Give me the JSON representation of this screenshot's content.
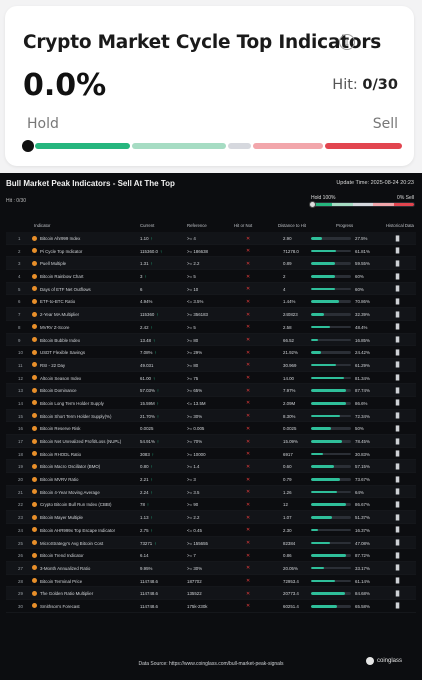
{
  "card": {
    "title": "Crypto Market Cycle Top Indicators",
    "value": "0.0%",
    "hit_prefix": "Hit: ",
    "hit_value": "0/30",
    "hold_label": "Hold",
    "sell_label": "Sell",
    "gauge_colors": [
      "#26b67e",
      "#a6dcc3",
      "#d6d8de",
      "#f2a6ab",
      "#e2454f"
    ],
    "gauge_level": 0
  },
  "panel": {
    "title": "Bull Market Peak Indicators - Sell At The Top",
    "update_time": "Update Time: 2025-08-24 20:23",
    "hit": "Hit : 0/30",
    "hold": "Hold 100%",
    "sell": "0% Sell",
    "headers": [
      "Indicator",
      "Current",
      "Reference",
      "Hit or Not",
      "Distance to Hit",
      "Progress",
      "Historical Data"
    ],
    "rows": [
      {
        "num": "1",
        "name": "Bitcoin Ahr999 Index",
        "current": "1.10",
        "up": true,
        "ref": ">= 4",
        "dist": "2.90",
        "progress": "27.5%",
        "p": 27.5
      },
      {
        "num": "2",
        "name": "Pi Cycle Top Indicator",
        "current": "115360.0",
        "up": true,
        "ref": ">= 186638",
        "dist": "71278.0",
        "progress": "61.81%",
        "p": 61.81
      },
      {
        "num": "3",
        "name": "Puell Multiple",
        "current": "1.31",
        "up": true,
        "ref": ">= 2.2",
        "dist": "0.89",
        "progress": "59.55%",
        "p": 59.55
      },
      {
        "num": "4",
        "name": "Bitcoin Rainbow Chart",
        "current": "3",
        "up": true,
        "ref": ">= 5",
        "dist": "2",
        "progress": "60%",
        "p": 60
      },
      {
        "num": "5",
        "name": "Days of ETF Net Outflows",
        "current": "6",
        "up": false,
        "ref": ">= 10",
        "dist": "4",
        "progress": "60%",
        "p": 60
      },
      {
        "num": "6",
        "name": "ETF-to-BTC Ratio",
        "current": "4.94%",
        "up": false,
        "ref": "<= 3.5%",
        "dist": "1.44%",
        "progress": "70.86%",
        "p": 70.86
      },
      {
        "num": "7",
        "name": "2-Year MA Multiplier",
        "current": "115360",
        "up": true,
        "ref": ">= 356183",
        "dist": "240823",
        "progress": "32.39%",
        "p": 32.39
      },
      {
        "num": "8",
        "name": "MVRV Z-Score",
        "current": "2.42",
        "up": true,
        "ref": ">= 5",
        "dist": "2.58",
        "progress": "48.4%",
        "p": 48.4
      },
      {
        "num": "9",
        "name": "Bitcoin Bubble Index",
        "current": "13.48",
        "up": true,
        "ref": ">= 80",
        "dist": "66.52",
        "progress": "16.85%",
        "p": 16.85
      },
      {
        "num": "10",
        "name": "USDT Flexible Savings",
        "current": "7.08%",
        "up": true,
        "ref": ">= 29%",
        "dist": "21.92%",
        "progress": "24.42%",
        "p": 24.42
      },
      {
        "num": "11",
        "name": "RSI - 22 Day",
        "current": "49.031",
        "up": false,
        "ref": ">= 80",
        "dist": "30.969",
        "progress": "61.29%",
        "p": 61.29
      },
      {
        "num": "12",
        "name": "Altcoin Season Index",
        "current": "61.00",
        "up": true,
        "ref": ">= 75",
        "dist": "14.00",
        "progress": "81.34%",
        "p": 81.34
      },
      {
        "num": "13",
        "name": "Bitcoin Dominance",
        "current": "57.03%",
        "up": true,
        "ref": ">= 65%",
        "dist": "7.97%",
        "progress": "87.74%",
        "p": 87.74
      },
      {
        "num": "14",
        "name": "Bitcoin Long Term Holder Supply",
        "current": "15.59M",
        "up": true,
        "ref": "<= 13.5M",
        "dist": "2.09M",
        "progress": "86.6%",
        "p": 86.6
      },
      {
        "num": "15",
        "name": "Bitcoin Short Term Holder Supply(%)",
        "current": "21.70%",
        "up": true,
        "ref": ">= 30%",
        "dist": "8.30%",
        "progress": "72.34%",
        "p": 72.34
      },
      {
        "num": "16",
        "name": "Bitcoin Reserve Risk",
        "current": "0.0025",
        "up": false,
        "ref": ">= 0.005",
        "dist": "0.0025",
        "progress": "50%",
        "p": 50
      },
      {
        "num": "17",
        "name": "Bitcoin Net Unrealized Profit/Loss (NUPL)",
        "current": "54.91%",
        "up": true,
        "ref": ">= 70%",
        "dist": "15.09%",
        "progress": "78.45%",
        "p": 78.45
      },
      {
        "num": "18",
        "name": "Bitcoin RHODL Ratio",
        "current": "3083",
        "up": true,
        "ref": ">= 10000",
        "dist": "6917",
        "progress": "30.83%",
        "p": 30.83
      },
      {
        "num": "19",
        "name": "Bitcoin Macro Oscillator (BMO)",
        "current": "0.80",
        "up": true,
        "ref": ">= 1.4",
        "dist": "0.60",
        "progress": "57.15%",
        "p": 57.15
      },
      {
        "num": "20",
        "name": "Bitcoin MVRV Ratio",
        "current": "2.21",
        "up": true,
        "ref": ">= 3",
        "dist": "0.79",
        "progress": "73.67%",
        "p": 73.67
      },
      {
        "num": "21",
        "name": "Bitcoin 4-Year Moving Average",
        "current": "2.24",
        "up": true,
        "ref": ">= 3.5",
        "dist": "1.26",
        "progress": "64%",
        "p": 64
      },
      {
        "num": "22",
        "name": "Crypto Bitcoin Bull Run Index (CBBI)",
        "current": "78",
        "up": true,
        "ref": ">= 90",
        "dist": "12",
        "progress": "86.67%",
        "p": 86.67
      },
      {
        "num": "23",
        "name": "Bitcoin Mayer Multiple",
        "current": "1.13",
        "up": true,
        "ref": ">= 2.2",
        "dist": "1.07",
        "progress": "51.37%",
        "p": 51.37
      },
      {
        "num": "24",
        "name": "Bitcoin AHR999x Top Escape Indicator",
        "current": "2.75",
        "up": true,
        "ref": "<= 0.45",
        "dist": "2.30",
        "progress": "16.37%",
        "p": 16.37
      },
      {
        "num": "25",
        "name": "MicroStrategy's Avg Bitcoin Cost",
        "current": "73271",
        "up": true,
        "ref": ">= 155655",
        "dist": "82384",
        "progress": "47.08%",
        "p": 47.08
      },
      {
        "num": "26",
        "name": "Bitcoin Trend Indicator",
        "current": "6.14",
        "up": false,
        "ref": ">= 7",
        "dist": "0.86",
        "progress": "87.72%",
        "p": 87.72
      },
      {
        "num": "27",
        "name": "3-Month Annualized Ratio",
        "current": "9.95%",
        "up": false,
        "ref": ">= 30%",
        "dist": "20.05%",
        "progress": "33.17%",
        "p": 33.17
      },
      {
        "num": "28",
        "name": "Bitcoin Terminal Price",
        "current": "114748.6",
        "up": false,
        "ref": "187702",
        "dist": "72953.4",
        "progress": "61.14%",
        "p": 61.14
      },
      {
        "num": "29",
        "name": "The Golden Ratio Multiplier",
        "current": "114748.6",
        "up": false,
        "ref": "135522",
        "dist": "20773.4",
        "progress": "84.68%",
        "p": 84.68
      },
      {
        "num": "30",
        "name": "Smithson's Forecast",
        "current": "114748.6",
        "up": false,
        "ref": "175k-230k",
        "dist": "60251.4",
        "progress": "65.58%",
        "p": 65.58
      }
    ],
    "footer": "Data Source: https://www.coinglass.com/bull-market-peak-signals",
    "logo": "coinglass"
  }
}
